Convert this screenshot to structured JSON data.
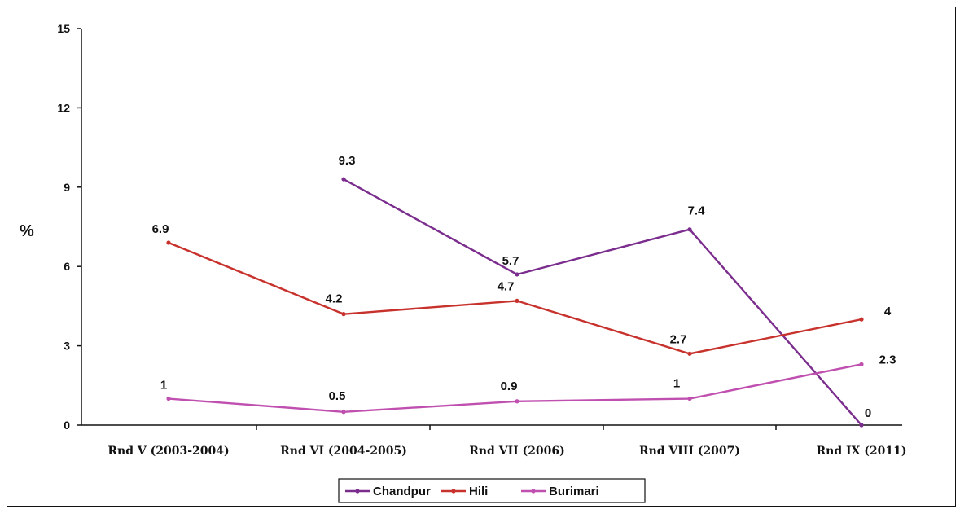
{
  "chart_data": {
    "type": "line",
    "categories": [
      "Rnd V (2003-2004)",
      "Rnd VI (2004-2005)",
      "Rnd VII (2006)",
      "Rnd VIII (2007)",
      "Rnd IX (2011)"
    ],
    "ylabel": "%",
    "ylim": [
      0,
      15
    ],
    "yticks": [
      0,
      3,
      6,
      9,
      12,
      15
    ],
    "grid": false,
    "legend_position": "bottom",
    "series": [
      {
        "name": "Chandpur",
        "color": "#7b2d8e",
        "values": [
          null,
          9.3,
          5.7,
          7.4,
          0
        ],
        "labels": [
          "",
          "9.3",
          "5.7",
          "7.4",
          "0"
        ]
      },
      {
        "name": "Hili",
        "color": "#c8322d",
        "values": [
          6.9,
          4.2,
          4.7,
          2.7,
          4
        ],
        "labels": [
          "6.9",
          "4.2",
          "4.7",
          "2.7",
          "4"
        ]
      },
      {
        "name": "Burimari",
        "color": "#c050b0",
        "values": [
          1,
          0.5,
          0.9,
          1,
          2.3
        ],
        "labels": [
          "1",
          "0.5",
          "0.9",
          "1",
          "2.3"
        ]
      }
    ]
  }
}
